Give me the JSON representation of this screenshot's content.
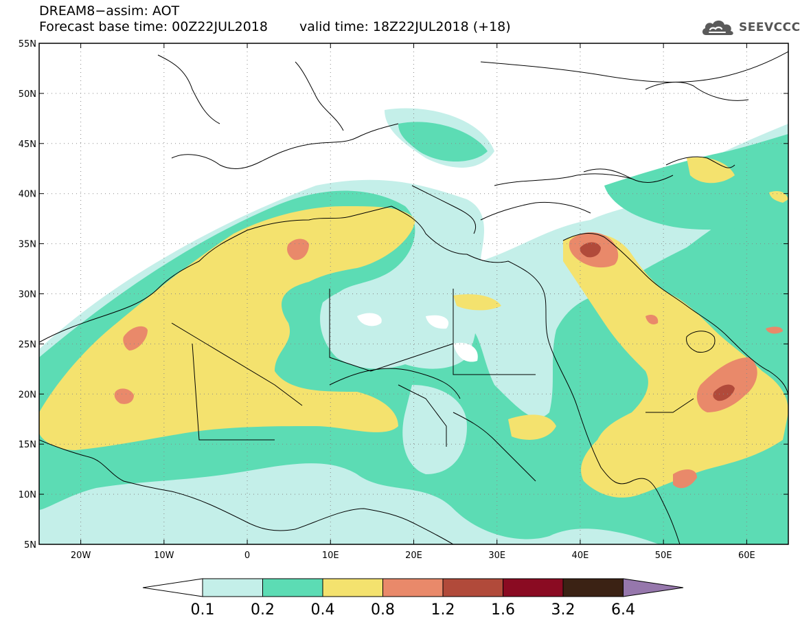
{
  "header": {
    "title_line1": "DREAM8−assim: AOT",
    "base_time": "Forecast base time: 00Z22JUL2018",
    "valid_time": "valid time: 18Z22JUL2018 (+18)",
    "logo_text": "SEEVCCC",
    "logo_icon": "cloud-icon"
  },
  "map": {
    "lon_range": [
      -25,
      65
    ],
    "lat_range": [
      5,
      55
    ],
    "lon_ticks": [
      {
        "value": -20,
        "label": "20W"
      },
      {
        "value": -10,
        "label": "10W"
      },
      {
        "value": 0,
        "label": "0"
      },
      {
        "value": 10,
        "label": "10E"
      },
      {
        "value": 20,
        "label": "20E"
      },
      {
        "value": 30,
        "label": "30E"
      },
      {
        "value": 40,
        "label": "40E"
      },
      {
        "value": 50,
        "label": "50E"
      },
      {
        "value": 60,
        "label": "60E"
      }
    ],
    "lat_ticks": [
      {
        "value": 5,
        "label": "5N"
      },
      {
        "value": 10,
        "label": "10N"
      },
      {
        "value": 15,
        "label": "15N"
      },
      {
        "value": 20,
        "label": "20N"
      },
      {
        "value": 25,
        "label": "25N"
      },
      {
        "value": 30,
        "label": "30N"
      },
      {
        "value": 35,
        "label": "35N"
      },
      {
        "value": 40,
        "label": "40N"
      },
      {
        "value": 45,
        "label": "45N"
      },
      {
        "value": 50,
        "label": "50N"
      },
      {
        "value": 55,
        "label": "55N"
      }
    ],
    "grid": "dotted"
  },
  "colorbar": {
    "labels": [
      "0.1",
      "0.2",
      "0.4",
      "0.8",
      "1.2",
      "1.6",
      "3.2",
      "6.4"
    ],
    "colors": [
      "#ffffff",
      "#c4efe9",
      "#5cdcb4",
      "#f4e26e",
      "#e9896a",
      "#b14a3a",
      "#8a0b22",
      "#3b2214",
      "#9677ac"
    ]
  }
}
